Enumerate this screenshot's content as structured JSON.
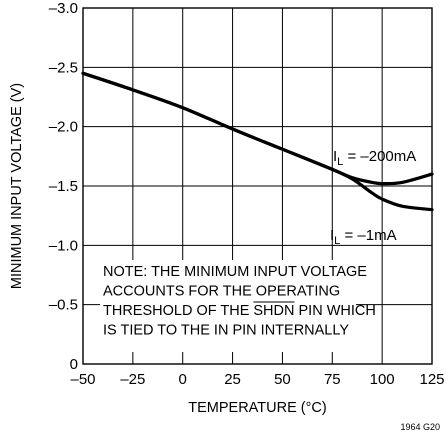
{
  "chart_data": {
    "type": "line",
    "title": "",
    "xlabel": "TEMPERATURE (°C)",
    "ylabel": "MINIMUM INPUT VOLTAGE (V)",
    "xlim": [
      -50,
      125
    ],
    "ylim": [
      0,
      -3.0
    ],
    "x_ticks": [
      -50,
      -25,
      0,
      25,
      50,
      75,
      100,
      125
    ],
    "y_ticks": [
      0,
      -0.5,
      -1.0,
      -1.5,
      -2.0,
      -2.5,
      -3.0
    ],
    "x_tick_labels": [
      "–50",
      "–25",
      "0",
      "25",
      "50",
      "75",
      "100",
      "125"
    ],
    "y_tick_labels": [
      "0",
      "–0.5",
      "–1.0",
      "–1.5",
      "–2.0",
      "–2.5",
      "–3.0"
    ],
    "grid": true,
    "series": [
      {
        "name_main": "I",
        "name_sub": "L",
        "name_rest": " = –200mA",
        "x": [
          -50,
          -25,
          0,
          25,
          50,
          75,
          85,
          95,
          100,
          110,
          125
        ],
        "y": [
          -2.45,
          -2.31,
          -2.16,
          -1.98,
          -1.81,
          -1.64,
          -1.57,
          -1.53,
          -1.52,
          -1.53,
          -1.6
        ]
      },
      {
        "name_main": "I",
        "name_sub": "L",
        "name_rest": " = –1mA",
        "x": [
          -50,
          -25,
          0,
          25,
          50,
          75,
          85,
          95,
          100,
          110,
          125
        ],
        "y": [
          -2.45,
          -2.31,
          -2.16,
          -1.98,
          -1.81,
          -1.64,
          -1.56,
          -1.44,
          -1.39,
          -1.33,
          -1.3
        ]
      }
    ],
    "note": [
      "NOTE: THE MINIMUM INPUT VOLTAGE",
      "ACCOUNTS FOR THE OPERATING",
      "THRESHOLD OF THE ",
      "SHDN",
      " PIN WHICH",
      "IS TIED TO THE IN PIN INTERNALLY"
    ],
    "figure_id": "1964 G20"
  }
}
